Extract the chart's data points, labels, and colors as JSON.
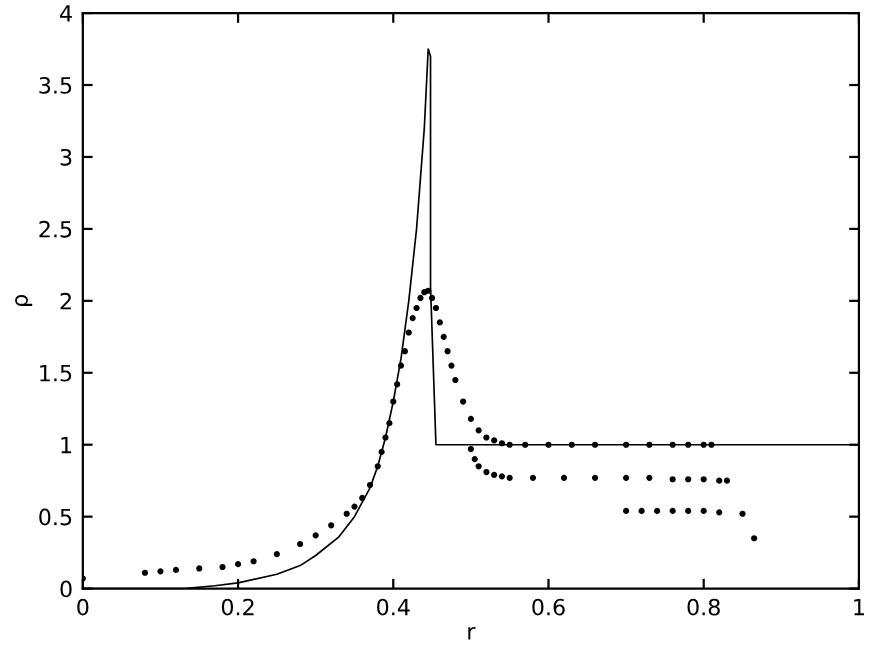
{
  "chart_data": {
    "type": "line",
    "xlabel": "r",
    "ylabel": "ρ",
    "xlim": [
      0,
      1
    ],
    "ylim": [
      0,
      4
    ],
    "xticks": [
      0,
      0.2,
      0.4,
      0.6,
      0.8,
      1
    ],
    "yticks": [
      0,
      0.5,
      1,
      1.5,
      2,
      2.5,
      3,
      3.5,
      4
    ],
    "grid": false,
    "legend": false,
    "series": [
      {
        "color": "#000000",
        "marker": "none",
        "x": [
          0,
          0.13,
          0.17,
          0.2,
          0.25,
          0.28,
          0.3,
          0.33,
          0.35,
          0.37,
          0.38,
          0.39,
          0.4,
          0.41,
          0.42,
          0.43,
          0.44,
          0.445,
          0.448,
          0.448,
          0.455,
          0.5,
          0.7,
          1
        ],
        "values": [
          0,
          0,
          0.02,
          0.04,
          0.1,
          0.16,
          0.23,
          0.36,
          0.5,
          0.7,
          0.85,
          1.05,
          1.3,
          1.6,
          2.0,
          2.5,
          3.2,
          3.75,
          3.7,
          2.1,
          1.0,
          1.0,
          1.0,
          1.0
        ]
      },
      {
        "type": "scatter",
        "color": "#000000",
        "marker": "circle",
        "x": [
          0.0,
          0.08,
          0.1,
          0.12,
          0.15,
          0.18,
          0.2,
          0.22,
          0.25,
          0.28,
          0.3,
          0.32,
          0.34,
          0.35,
          0.36,
          0.37,
          0.38,
          0.385,
          0.39,
          0.395,
          0.4,
          0.405,
          0.41,
          0.415,
          0.42,
          0.425,
          0.43,
          0.435,
          0.44,
          0.445,
          0.45,
          0.455,
          0.46,
          0.465,
          0.47,
          0.475,
          0.48,
          0.49,
          0.5,
          0.51,
          0.52,
          0.53,
          0.54,
          0.55,
          0.57,
          0.6,
          0.63,
          0.66,
          0.7,
          0.73,
          0.76,
          0.78,
          0.8,
          0.81,
          0.5,
          0.505,
          0.51,
          0.52,
          0.53,
          0.54,
          0.55,
          0.58,
          0.62,
          0.66,
          0.7,
          0.73,
          0.76,
          0.78,
          0.8,
          0.82,
          0.83,
          0.7,
          0.72,
          0.74,
          0.76,
          0.78,
          0.8,
          0.82,
          0.85,
          0.865
        ],
        "values": [
          0.07,
          0.11,
          0.12,
          0.13,
          0.14,
          0.15,
          0.17,
          0.19,
          0.24,
          0.31,
          0.37,
          0.44,
          0.52,
          0.57,
          0.63,
          0.72,
          0.85,
          0.95,
          1.05,
          1.15,
          1.3,
          1.42,
          1.55,
          1.65,
          1.78,
          1.88,
          1.95,
          2.02,
          2.06,
          2.07,
          2.02,
          1.95,
          1.85,
          1.75,
          1.65,
          1.55,
          1.45,
          1.3,
          1.18,
          1.1,
          1.05,
          1.03,
          1.01,
          1.0,
          1.0,
          1.0,
          1.0,
          1.0,
          1.0,
          1.0,
          1.0,
          1.0,
          1.0,
          1.0,
          0.97,
          0.9,
          0.85,
          0.81,
          0.79,
          0.78,
          0.77,
          0.77,
          0.77,
          0.77,
          0.77,
          0.77,
          0.76,
          0.76,
          0.76,
          0.75,
          0.75,
          0.54,
          0.54,
          0.54,
          0.54,
          0.54,
          0.54,
          0.53,
          0.52,
          0.35
        ]
      }
    ]
  }
}
